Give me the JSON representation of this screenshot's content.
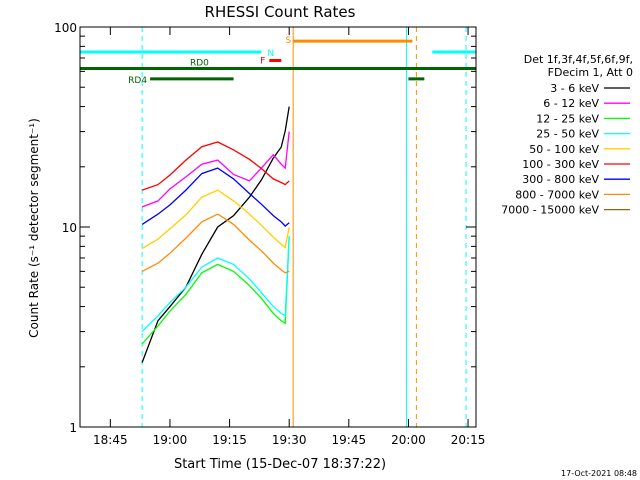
{
  "chart_data": {
    "type": "line",
    "title": "RHESSI Count Rates",
    "xlabel": "Start Time (15-Dec-07 18:37:22)",
    "ylabel": "Count Rate (s⁻¹ detector segment⁻¹)",
    "y_scale": "log",
    "ylim": [
      1,
      100
    ],
    "xlim": [
      "18:37:22",
      "20:17:00"
    ],
    "x_ticks": [
      "18:45",
      "19:00",
      "19:15",
      "19:30",
      "19:45",
      "20:00",
      "20:15"
    ],
    "y_ticks": [
      "1",
      "10",
      "100"
    ],
    "grid": false,
    "legend_position": "right",
    "legend_header": [
      "Det 1f,3f,4f,5f,6f,9f,",
      "FDecim 1, Att 0"
    ],
    "footer_timestamp": "17-Oct-2021 08:48",
    "series": [
      {
        "name": "3 - 6 keV",
        "color": "#000000",
        "x": [
          "18:53",
          "18:57",
          "19:00",
          "19:04",
          "19:08",
          "19:12",
          "19:16",
          "19:20",
          "19:23",
          "19:26",
          "19:28",
          "19:29",
          "19:30"
        ],
        "values": [
          2.1,
          3.4,
          4.0,
          5.0,
          7.3,
          10.0,
          11.4,
          14.1,
          17.2,
          22.1,
          25.1,
          30.2,
          40.0
        ]
      },
      {
        "name": "6 - 12 keV",
        "color": "#ff00ff",
        "x": [
          "18:53",
          "18:57",
          "19:00",
          "19:04",
          "19:08",
          "19:12",
          "19:16",
          "19:20",
          "19:23",
          "19:26",
          "19:28",
          "19:29",
          "19:30"
        ],
        "values": [
          12.6,
          13.5,
          15.5,
          17.8,
          20.6,
          21.6,
          18.3,
          17.0,
          19.7,
          23.0,
          20.6,
          19.7,
          30.0
        ]
      },
      {
        "name": "12 - 25 keV",
        "color": "#00ff00",
        "x": [
          "18:53",
          "18:57",
          "19:00",
          "19:04",
          "19:08",
          "19:12",
          "19:16",
          "19:20",
          "19:23",
          "19:26",
          "19:28",
          "19:29",
          "19:30"
        ],
        "values": [
          2.6,
          3.2,
          3.8,
          4.6,
          5.9,
          6.5,
          6.0,
          5.1,
          4.4,
          3.7,
          3.4,
          3.3,
          9.0
        ]
      },
      {
        "name": "25 - 50 keV",
        "color": "#00ffff",
        "x": [
          "18:53",
          "18:57",
          "19:00",
          "19:04",
          "19:08",
          "19:12",
          "19:16",
          "19:20",
          "19:23",
          "19:26",
          "19:28",
          "19:29",
          "19:30"
        ],
        "values": [
          3.0,
          3.6,
          4.2,
          5.0,
          6.3,
          7.0,
          6.5,
          5.5,
          4.7,
          4.0,
          3.7,
          3.6,
          9.0
        ]
      },
      {
        "name": "50 - 100 keV",
        "color": "#ffd000",
        "x": [
          "18:53",
          "18:57",
          "19:00",
          "19:04",
          "19:08",
          "19:12",
          "19:16",
          "19:20",
          "19:23",
          "19:26",
          "19:28",
          "19:29",
          "19:30"
        ],
        "values": [
          7.8,
          8.7,
          9.8,
          11.5,
          14.1,
          15.3,
          13.5,
          11.6,
          10.2,
          8.9,
          8.2,
          7.9,
          10.0
        ]
      },
      {
        "name": "100 - 300 keV",
        "color": "#ff0000",
        "x": [
          "18:53",
          "18:57",
          "19:00",
          "19:04",
          "19:08",
          "19:12",
          "19:16",
          "19:20",
          "19:23",
          "19:26",
          "19:28",
          "19:29",
          "19:30"
        ],
        "values": [
          15.3,
          16.3,
          18.2,
          21.6,
          25.2,
          26.6,
          24.3,
          21.8,
          19.6,
          17.4,
          16.7,
          16.3,
          17.0
        ]
      },
      {
        "name": "300 - 800 keV",
        "color": "#0000ff",
        "x": [
          "18:53",
          "18:57",
          "19:00",
          "19:04",
          "19:08",
          "19:12",
          "19:16",
          "19:20",
          "19:23",
          "19:26",
          "19:28",
          "19:29",
          "19:30"
        ],
        "values": [
          10.3,
          11.6,
          12.9,
          15.3,
          18.5,
          19.7,
          17.4,
          14.7,
          13.0,
          11.4,
          10.6,
          10.1,
          10.5
        ]
      },
      {
        "name": "800 - 7000 keV",
        "color": "#ff8c00",
        "x": [
          "18:53",
          "18:57",
          "19:00",
          "19:04",
          "19:08",
          "19:12",
          "19:16",
          "19:20",
          "19:23",
          "19:26",
          "19:28",
          "19:29",
          "19:30"
        ],
        "values": [
          6.0,
          6.6,
          7.4,
          8.8,
          10.6,
          11.6,
          10.3,
          8.6,
          7.6,
          6.6,
          6.1,
          5.9,
          6.0
        ]
      },
      {
        "name": "7000 - 15000 keV",
        "color": "#8b6914",
        "x": [],
        "values": []
      }
    ],
    "attenuator_bars": [
      {
        "label": "N",
        "color": "#00ffff",
        "y": 75,
        "segments": [
          [
            "18:37:22",
            "19:23:00"
          ],
          [
            "20:06:00",
            "20:17:00"
          ]
        ]
      },
      {
        "label": "RD0",
        "color": "#006400",
        "y": 62,
        "segments": [
          [
            "18:37:22",
            "20:17:00"
          ]
        ]
      },
      {
        "label": "RD4",
        "color": "#006400",
        "y": 55,
        "segments": [
          [
            "18:55:00",
            "19:16:00"
          ],
          [
            "20:00:00",
            "20:04:00"
          ]
        ]
      },
      {
        "label": "F",
        "color": "#ff0000",
        "y": 68,
        "segments": [
          [
            "19:25:00",
            "19:28:00"
          ]
        ]
      },
      {
        "label": "S",
        "color": "#ff8c00",
        "y": 85,
        "segments": [
          [
            "19:31:00",
            "20:01:00"
          ]
        ]
      }
    ],
    "vertical_lines": [
      {
        "x": "18:37:22",
        "color": "#00ffff",
        "style": "solid"
      },
      {
        "x": "18:53:00",
        "color": "#00ffff",
        "style": "dashed"
      },
      {
        "x": "19:31:00",
        "color": "#ff8c00",
        "style": "solid"
      },
      {
        "x": "19:59:30",
        "color": "#00ffff",
        "style": "solid"
      },
      {
        "x": "20:02:00",
        "color": "#ff8c00",
        "style": "dashed"
      },
      {
        "x": "20:14:30",
        "color": "#00ffff",
        "style": "dashed"
      }
    ]
  }
}
